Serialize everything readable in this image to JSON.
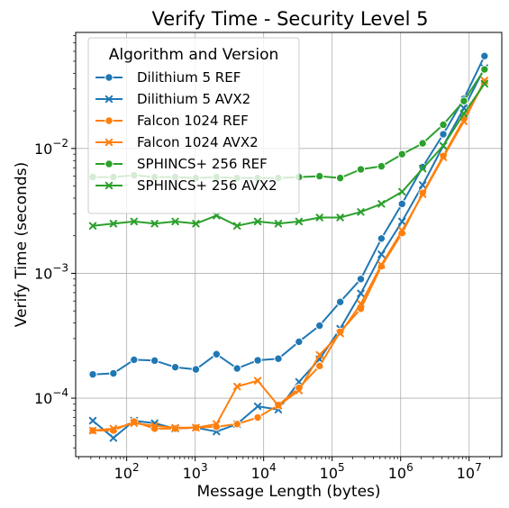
{
  "chart_data": {
    "type": "line",
    "title": "Verify Time - Security Level 5",
    "xlabel": "Message Length (bytes)",
    "ylabel": "Verify Time (seconds)",
    "xscale": "log",
    "yscale": "log",
    "xlim": [
      18,
      30000000
    ],
    "ylim": [
      3.4e-05,
      0.085
    ],
    "grid": true,
    "x_ticks": [
      {
        "value": 100,
        "base": "10",
        "exp": "2"
      },
      {
        "value": 1000,
        "base": "10",
        "exp": "3"
      },
      {
        "value": 10000,
        "base": "10",
        "exp": "4"
      },
      {
        "value": 100000,
        "base": "10",
        "exp": "5"
      },
      {
        "value": 1000000,
        "base": "10",
        "exp": "6"
      },
      {
        "value": 10000000,
        "base": "10",
        "exp": "7"
      }
    ],
    "y_ticks": [
      {
        "value": 0.0001,
        "base": "10",
        "exp": "−4"
      },
      {
        "value": 0.001,
        "base": "10",
        "exp": "−3"
      },
      {
        "value": 0.01,
        "base": "10",
        "exp": "−2"
      }
    ],
    "legend_title": "Algorithm and Version",
    "legend_position": "top-left",
    "x": [
      32,
      64,
      128,
      256,
      512,
      1024,
      2048,
      4096,
      8192,
      16384,
      32768,
      65536,
      131072,
      262144,
      524288,
      1048576,
      2097152,
      4194304,
      8388608,
      16777216
    ],
    "series": [
      {
        "name": "Dilithium 5 REF",
        "color": "#1f77b4",
        "marker": "circle",
        "values": [
          0.000155,
          0.000158,
          0.000203,
          0.0002,
          0.000177,
          0.00017,
          0.000225,
          0.000173,
          0.000201,
          0.000207,
          0.000283,
          0.000381,
          0.00059,
          0.0009,
          0.0019,
          0.0036,
          0.0071,
          0.013,
          0.025,
          0.055
        ]
      },
      {
        "name": "Dilithium 5 AVX2",
        "color": "#1f77b4",
        "marker": "x",
        "values": [
          6.6e-05,
          4.8e-05,
          6.6e-05,
          6.3e-05,
          5.7e-05,
          5.8e-05,
          5.4e-05,
          6.2e-05,
          8.6e-05,
          8.1e-05,
          0.000135,
          0.000205,
          0.00036,
          0.00069,
          0.00142,
          0.0026,
          0.0051,
          0.0105,
          0.021,
          0.044
        ]
      },
      {
        "name": "Falcon 1024 REF",
        "color": "#ff7f0e",
        "marker": "circle",
        "values": [
          5.5e-05,
          5.5e-05,
          6.5e-05,
          5.7e-05,
          5.7e-05,
          5.8e-05,
          5.9e-05,
          6.2e-05,
          7e-05,
          8.8e-05,
          0.000121,
          0.000181,
          0.00034,
          0.00052,
          0.00114,
          0.0021,
          0.0044,
          0.0087,
          0.0172,
          0.034
        ]
      },
      {
        "name": "Falcon 1024 AVX2",
        "color": "#ff7f0e",
        "marker": "x",
        "values": [
          5.5e-05,
          5.7e-05,
          6.3e-05,
          6e-05,
          5.8e-05,
          5.8e-05,
          6.2e-05,
          0.000124,
          0.000138,
          8.7e-05,
          0.000115,
          0.000222,
          0.00033,
          0.00057,
          0.00117,
          0.0022,
          0.0043,
          0.0085,
          0.0165,
          0.035
        ]
      },
      {
        "name": "SPHINCS+ 256 REF",
        "color": "#2ca02c",
        "marker": "circle",
        "values": [
          0.0059,
          0.0059,
          0.0061,
          0.0059,
          0.0059,
          0.0058,
          0.0059,
          0.0058,
          0.0058,
          0.0058,
          0.0059,
          0.006,
          0.0058,
          0.0068,
          0.0072,
          0.009,
          0.011,
          0.0155,
          0.024,
          0.043
        ]
      },
      {
        "name": "SPHINCS+ 256 AVX2",
        "color": "#2ca02c",
        "marker": "x",
        "values": [
          0.0024,
          0.0025,
          0.0026,
          0.0025,
          0.0026,
          0.0025,
          0.0029,
          0.0024,
          0.0026,
          0.0025,
          0.0026,
          0.0028,
          0.0028,
          0.0031,
          0.0036,
          0.0045,
          0.0069,
          0.0105,
          0.019,
          0.033
        ]
      }
    ]
  }
}
